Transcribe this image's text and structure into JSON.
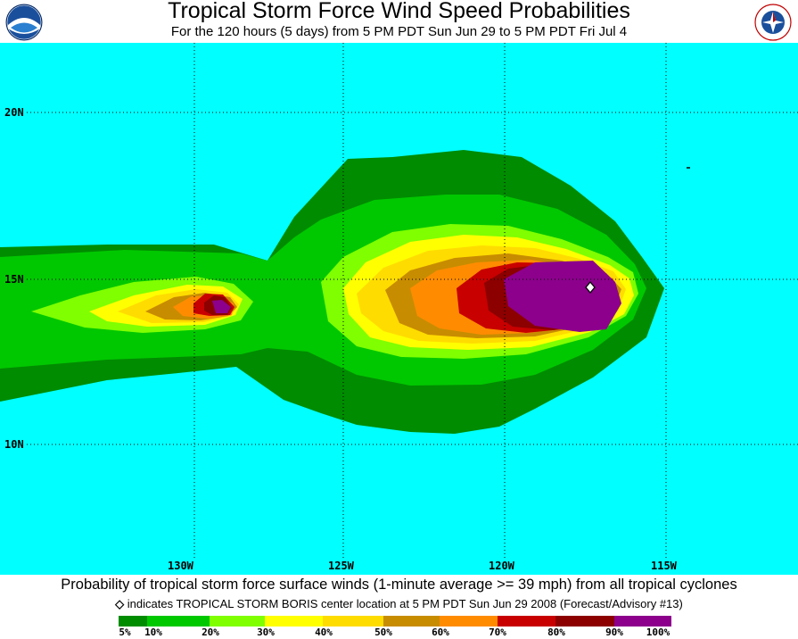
{
  "header": {
    "title": "Tropical Storm Force Wind Speed Probabilities",
    "subtitle": "For the 120 hours (5 days) from 5 PM PDT Sun Jun 29 to 5 PM PDT Fri Jul 4",
    "left_logo": "noaa-logo",
    "right_logo": "national-weather-service-logo"
  },
  "map": {
    "ocean_color": "#00ffff",
    "lat_labels": [
      "20N",
      "15N",
      "10N"
    ],
    "lon_labels": [
      "130W",
      "125W",
      "120W",
      "115W"
    ],
    "storm_marker": "diamond-marker"
  },
  "footer": {
    "caption": "Probability of tropical storm force surface winds (1-minute average >= 39 mph) from all tropical cyclones",
    "note": "indicates TROPICAL STORM BORIS center location at 5 PM PDT Sun Jun 29 2008 (Forecast/Advisory #13)",
    "note_symbol": "◇"
  },
  "legend": {
    "colors": [
      "#008c00",
      "#00c800",
      "#7fff00",
      "#ffff00",
      "#ffdc00",
      "#c88c00",
      "#ff8c00",
      "#c80000",
      "#8c0000",
      "#8c008c"
    ],
    "labels": [
      "5%",
      "10%",
      "20%",
      "30%",
      "40%",
      "50%",
      "60%",
      "70%",
      "80%",
      "90%",
      "100%"
    ]
  }
}
